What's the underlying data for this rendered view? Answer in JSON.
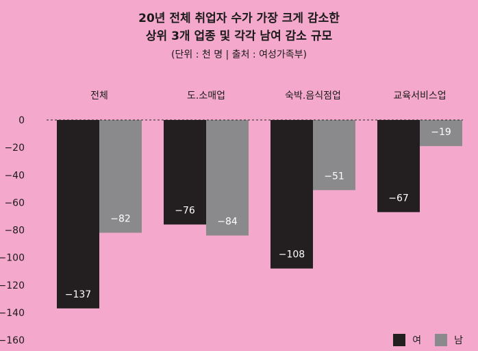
{
  "title": {
    "line1": "20년 전체 취업자 수가 가장 크게 감소한",
    "line2": "상위 3개 업종 및 각각 남여 감소 규모",
    "source": "(단위 : 천 명  |  출처 : 여성가족부)"
  },
  "colors": {
    "background": "#f4a9cc",
    "female": "#231f20",
    "male": "#8a8a8c"
  },
  "chart_data": {
    "type": "bar",
    "categories": [
      "전체",
      "도.소매업",
      "숙박.음식점업",
      "교육서비스업"
    ],
    "series": [
      {
        "name": "여",
        "values": [
          -137,
          -76,
          -108,
          -67
        ]
      },
      {
        "name": "남",
        "values": [
          -82,
          -84,
          -51,
          -19
        ]
      }
    ],
    "data_labels": {
      "여": [
        "−137",
        "−76",
        "−108",
        "−67"
      ],
      "남": [
        "−82",
        "−84",
        "−51",
        "−19"
      ]
    },
    "y_ticks": [
      "0",
      "−20",
      "−40",
      "−60",
      "−80",
      "−100",
      "−120",
      "−140",
      "−160"
    ],
    "ylim": [
      -160,
      0
    ],
    "grid": false,
    "zero_line": "dashed",
    "legend_position": "bottom-right"
  }
}
